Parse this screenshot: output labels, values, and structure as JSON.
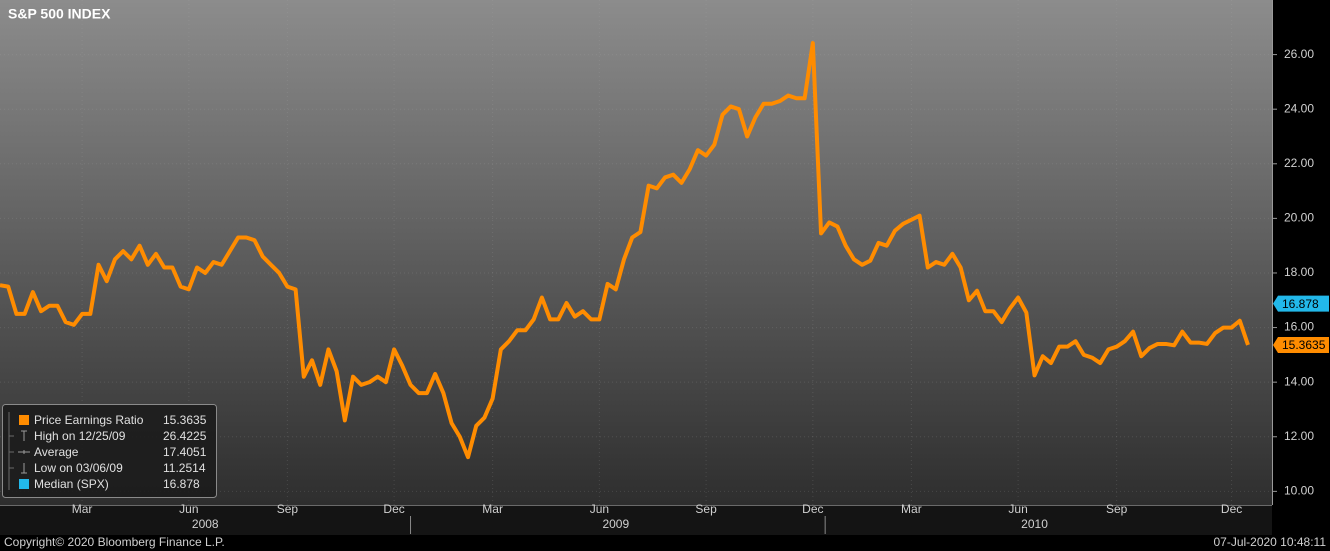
{
  "chart_data": {
    "type": "line",
    "title": "S&P 500 INDEX",
    "categories": [
      null,
      null,
      null,
      null,
      null,
      null,
      null,
      null,
      null,
      null,
      "Mar",
      null,
      null,
      null,
      null,
      null,
      null,
      null,
      null,
      null,
      null,
      null,
      null,
      "Jun",
      null,
      null,
      null,
      null,
      null,
      null,
      null,
      null,
      null,
      null,
      null,
      "Sep",
      null,
      null,
      null,
      null,
      null,
      null,
      null,
      null,
      null,
      null,
      null,
      null,
      "Dec",
      null,
      null,
      null,
      null,
      null,
      null,
      null,
      null,
      null,
      null,
      null,
      "Mar",
      null,
      null,
      null,
      null,
      null,
      null,
      null,
      null,
      null,
      null,
      null,
      null,
      "Jun",
      null,
      null,
      null,
      null,
      null,
      null,
      null,
      null,
      null,
      null,
      null,
      null,
      "Sep",
      null,
      null,
      null,
      null,
      null,
      null,
      null,
      null,
      null,
      null,
      null,
      null,
      "Dec",
      null,
      null,
      null,
      null,
      null,
      null,
      null,
      null,
      null,
      null,
      null,
      "Mar",
      null,
      null,
      null,
      null,
      null,
      null,
      null,
      null,
      null,
      null,
      null,
      null,
      "Jun",
      null,
      null,
      null,
      null,
      null,
      null,
      null,
      null,
      null,
      null,
      null,
      "Sep",
      null,
      null,
      null,
      null,
      null,
      null,
      null,
      null,
      null,
      null,
      null,
      null,
      null,
      "Dec",
      null,
      null
    ],
    "category_groups": [
      null,
      null,
      null,
      null,
      null,
      null,
      null,
      null,
      null,
      null,
      null,
      null,
      null,
      null,
      null,
      null,
      null,
      null,
      null,
      null,
      null,
      null,
      null,
      null,
      null,
      "2008",
      null,
      null,
      null,
      null,
      null,
      null,
      null,
      null,
      null,
      null,
      null,
      null,
      null,
      null,
      null,
      null,
      null,
      null,
      null,
      null,
      null,
      null,
      null,
      null,
      null,
      null,
      null,
      null,
      null,
      null,
      null,
      null,
      null,
      null,
      null,
      null,
      null,
      null,
      null,
      null,
      null,
      null,
      null,
      null,
      null,
      null,
      null,
      null,
      null,
      "2009",
      null,
      null,
      null,
      null,
      null,
      null,
      null,
      null,
      null,
      null,
      null,
      null,
      null,
      null,
      null,
      null,
      null,
      null,
      null,
      null,
      null,
      null,
      null,
      null,
      null,
      null,
      null,
      null,
      null,
      null,
      null,
      null,
      null,
      null,
      null,
      null,
      null,
      null,
      null,
      null,
      null,
      null,
      null,
      null,
      null,
      null,
      null,
      null,
      null,
      null,
      "2010",
      null,
      null,
      null,
      null,
      null,
      null,
      null,
      null,
      null,
      null,
      null,
      null,
      null,
      null,
      null,
      null,
      null,
      null,
      null,
      null,
      null,
      null,
      null,
      null,
      null,
      null
    ],
    "series": [
      {
        "name": "Price Earnings Ratio",
        "color": "#ff8c00",
        "values": [
          17.55,
          17.5,
          16.5,
          16.5,
          17.3,
          16.6,
          16.8,
          16.8,
          16.2,
          16.1,
          16.5,
          16.5,
          18.3,
          17.7,
          18.5,
          18.8,
          18.5,
          19.0,
          18.3,
          18.7,
          18.2,
          18.2,
          17.5,
          17.4,
          18.2,
          18.0,
          18.4,
          18.3,
          18.8,
          19.3,
          19.3,
          19.2,
          18.6,
          18.3,
          18.0,
          17.5,
          17.4,
          14.2,
          14.8,
          13.9,
          15.2,
          14.4,
          12.6,
          14.2,
          13.9,
          14.0,
          14.2,
          14.0,
          15.2,
          14.6,
          13.9,
          13.6,
          13.6,
          14.3,
          13.6,
          12.5,
          12.0,
          11.2514,
          12.4,
          12.7,
          13.4,
          15.2,
          15.5,
          15.9,
          15.9,
          16.3,
          17.1,
          16.3,
          16.3,
          16.9,
          16.4,
          16.6,
          16.3,
          16.3,
          17.6,
          17.4,
          18.5,
          19.3,
          19.5,
          21.2,
          21.1,
          21.5,
          21.6,
          21.3,
          21.8,
          22.5,
          22.3,
          22.7,
          23.8,
          24.1,
          24.0,
          23.0,
          23.7,
          24.2,
          24.2,
          24.3,
          24.5,
          24.4,
          24.4,
          26.4225,
          19.45,
          19.85,
          19.7,
          19.0,
          18.5,
          18.3,
          18.45,
          19.1,
          19.0,
          19.55,
          19.8,
          19.95,
          20.1,
          18.2,
          18.4,
          18.3,
          18.7,
          18.2,
          17.0,
          17.35,
          16.6,
          16.6,
          16.2,
          16.7,
          17.1,
          16.55,
          14.25,
          14.95,
          14.7,
          15.3,
          15.3,
          15.5,
          15.0,
          14.9,
          14.7,
          15.2,
          15.3,
          15.5,
          15.85,
          14.95,
          15.25,
          15.4,
          15.4,
          15.35,
          15.85,
          15.45,
          15.45,
          15.4,
          15.8,
          16.0,
          16.0,
          16.25,
          15.3635
        ]
      }
    ],
    "median": {
      "name": "Median (SPX)",
      "value": 16.878,
      "color": "#22b8ea"
    },
    "stats": {
      "high_label": "High on 12/25/09",
      "average_label": "Average",
      "average": 17.4051,
      "low_label": "Low on 03/06/09"
    },
    "ylim": [
      9.5,
      28
    ],
    "yticks": [
      {
        "value": 10,
        "label": "10.00"
      },
      {
        "value": 12,
        "label": "12.00"
      },
      {
        "value": 14,
        "label": "14.00"
      },
      {
        "value": 16,
        "label": "16.00"
      },
      {
        "value": 18,
        "label": "18.00"
      },
      {
        "value": 20,
        "label": "20.00"
      },
      {
        "value": 22,
        "label": "22.00"
      },
      {
        "value": 24,
        "label": "24.00"
      },
      {
        "value": 26,
        "label": "26.00"
      }
    ],
    "grid": true,
    "legend_position": "lower left"
  },
  "footer": {
    "copyright": "Copyright© 2020 Bloomberg Finance L.P.",
    "timestamp": "07-Jul-2020 10:48:11"
  }
}
